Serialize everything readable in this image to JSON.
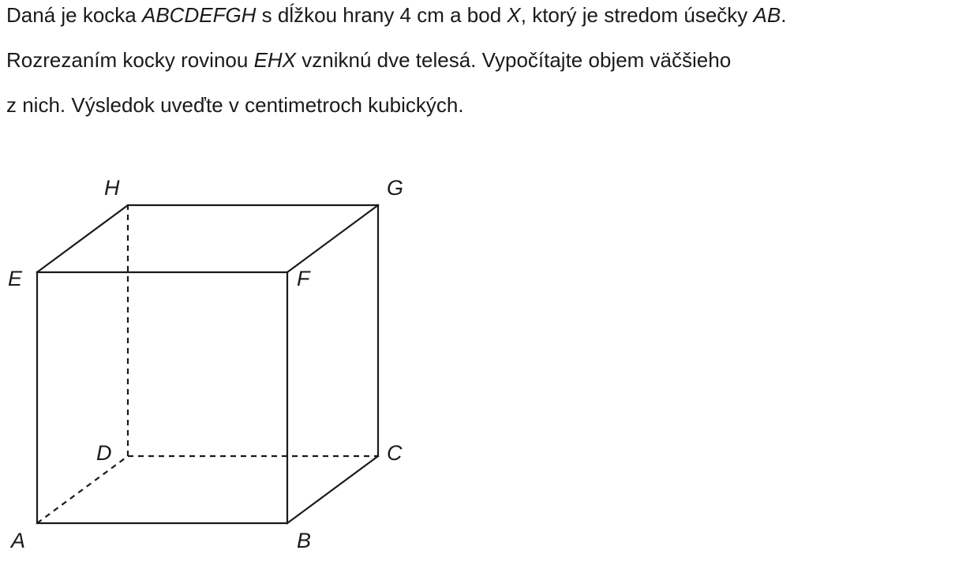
{
  "problem": {
    "line1": {
      "t1": "Daná je kocka ",
      "cube_name": "ABCDEFGH",
      "t2": " s dĺžkou hrany 4 cm a bod ",
      "point": "X",
      "t3": ", ktorý je stredom úsečky ",
      "segment": "AB",
      "t4": "."
    },
    "line2": {
      "t1": "Rozrezaním kocky rovinou ",
      "plane": "EHX",
      "t2": " vzniknú dve telesá. Vypočítajte objem väčšieho"
    },
    "line3": {
      "t1": "z nich. Výsledok uveďte v centimetroch kubických."
    }
  },
  "diagram": {
    "vertex_labels": {
      "A": "A",
      "B": "B",
      "C": "C",
      "D": "D",
      "E": "E",
      "F": "F",
      "G": "G",
      "H": "H"
    },
    "edge_color": "#1a1a1a"
  }
}
